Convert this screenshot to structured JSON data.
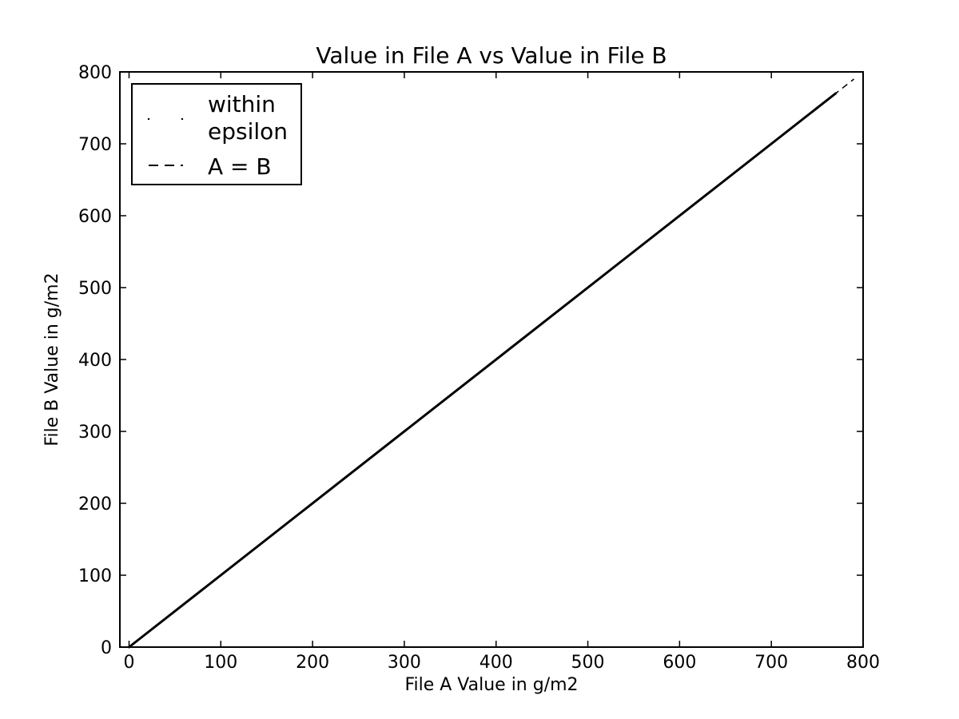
{
  "chart_data": {
    "type": "scatter",
    "title": "Value in File A vs Value in File B",
    "xlabel": "File A Value in g/m2",
    "ylabel": "File B Value in g/m2",
    "xlim": [
      -10,
      800
    ],
    "ylim": [
      0,
      800
    ],
    "x_ticks": [
      0,
      100,
      200,
      300,
      400,
      500,
      600,
      700,
      800
    ],
    "y_ticks": [
      0,
      100,
      200,
      300,
      400,
      500,
      600,
      700,
      800
    ],
    "grid": false,
    "legend": {
      "placement": "top-left",
      "entries": [
        {
          "label_lines": [
            "within",
            "epsilon"
          ],
          "marker": "dots"
        },
        {
          "label_lines": [
            "A = B"
          ],
          "marker": "dashed-line"
        }
      ]
    },
    "series": [
      {
        "name": "within epsilon",
        "style": "points",
        "color": "#000000",
        "x": [
          0,
          50,
          100,
          150,
          200,
          250,
          300,
          350,
          400,
          450,
          500,
          550,
          600,
          650,
          700,
          750,
          770
        ],
        "y": [
          0,
          50,
          100,
          150,
          200,
          250,
          300,
          350,
          400,
          450,
          500,
          550,
          600,
          650,
          700,
          750,
          770
        ]
      },
      {
        "name": "A = B",
        "style": "dashed-line",
        "color": "#000000",
        "x": [
          0,
          790
        ],
        "y": [
          0,
          790
        ]
      }
    ]
  }
}
